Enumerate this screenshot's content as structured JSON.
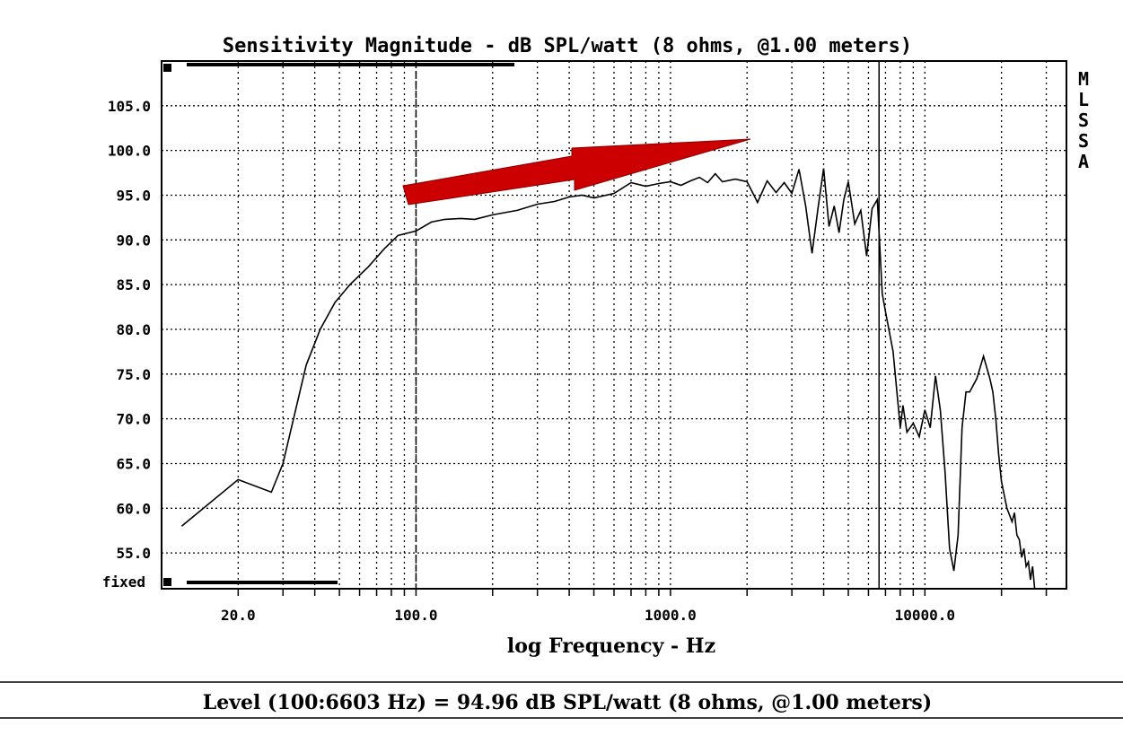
{
  "chart_data": {
    "type": "line",
    "title": "Sensitivity Magnitude - dB SPL/watt (8 ohms, @1.00 meters)",
    "xlabel": "log Frequency - Hz",
    "ylabel": "",
    "x_scale": "log",
    "xlim": [
      10,
      36000
    ],
    "ylim": [
      51,
      110
    ],
    "y_ticks": [
      {
        "value": 105,
        "label": "105.0"
      },
      {
        "value": 100,
        "label": "100.0"
      },
      {
        "value": 95,
        "label": "95.0"
      },
      {
        "value": 90,
        "label": "90.0"
      },
      {
        "value": 85,
        "label": "85.0"
      },
      {
        "value": 80,
        "label": "80.0"
      },
      {
        "value": 75,
        "label": "75.0"
      },
      {
        "value": 70,
        "label": "70.0"
      },
      {
        "value": 65,
        "label": "65.0"
      },
      {
        "value": 60,
        "label": "60.0"
      },
      {
        "value": 55,
        "label": "55.0"
      }
    ],
    "y_bottom_label": "fixed",
    "x_ticks": [
      {
        "value": 20,
        "label": "20.0"
      },
      {
        "value": 100,
        "label": "100.0"
      },
      {
        "value": 1000,
        "label": "1000.0"
      },
      {
        "value": 10000,
        "label": "10000.0"
      }
    ],
    "grid": true,
    "markers_hz": [
      100,
      6603
    ],
    "side_label": [
      "M",
      "L",
      "S",
      "S",
      "A"
    ],
    "series": [
      {
        "x": [
          12,
          20,
          27,
          30,
          33,
          37,
          42,
          48,
          55,
          65,
          75,
          85,
          100,
          115,
          130,
          150,
          170,
          200,
          250,
          300,
          350,
          400,
          450,
          500,
          600,
          700,
          800,
          900,
          1000,
          1100,
          1200,
          1300,
          1400,
          1500,
          1600,
          1800,
          2000,
          2200,
          2400,
          2600,
          2800,
          3000,
          3200,
          3400,
          3600,
          3800,
          4000,
          4200,
          4400,
          4600,
          4800,
          5000,
          5300,
          5600,
          5900,
          6200,
          6500,
          6603,
          6800,
          7000,
          7500,
          8000,
          8200,
          8500,
          9000,
          9500,
          10000,
          10500,
          11000,
          11500,
          12000,
          12500,
          13000,
          13500,
          14000,
          14500,
          15000,
          16000,
          17000,
          18000,
          18500,
          19000,
          19500,
          20000,
          21000,
          22000,
          22500,
          23000,
          23500,
          24000,
          24500,
          25000,
          25500,
          26000,
          26500,
          27000
        ],
        "values": [
          58,
          63.2,
          61.8,
          65,
          70,
          76,
          80,
          83,
          85,
          87,
          89,
          90.5,
          91,
          92,
          92.3,
          92.4,
          92.3,
          92.8,
          93.3,
          94,
          94.3,
          94.8,
          95,
          94.7,
          95.2,
          96.4,
          96,
          96.3,
          96.5,
          96.1,
          96.6,
          97,
          96.4,
          97.4,
          96.5,
          96.8,
          96.5,
          94.2,
          96.6,
          95.3,
          96.4,
          95.2,
          97.9,
          93.8,
          88.5,
          93.5,
          98,
          91.5,
          93.8,
          90.8,
          94.5,
          96.5,
          91.8,
          93.3,
          88.2,
          93.5,
          94.5,
          91,
          84,
          82,
          77.5,
          69,
          71.5,
          68.5,
          69.5,
          68,
          71,
          69,
          74.8,
          71,
          64,
          55.5,
          53,
          57,
          69,
          73,
          73,
          74.5,
          77,
          74.5,
          73,
          70,
          66,
          63,
          60,
          58.5,
          59.5,
          57,
          56.5,
          54.5,
          55.5,
          53.5,
          54,
          52,
          53.5,
          51
        ]
      }
    ]
  },
  "footer_text": "Level (100:6603 Hz) = 94.96 dB SPL/watt (8 ohms, @1.00 meters)",
  "colors": {
    "arrow": "#cc0000",
    "line": "#000000"
  }
}
